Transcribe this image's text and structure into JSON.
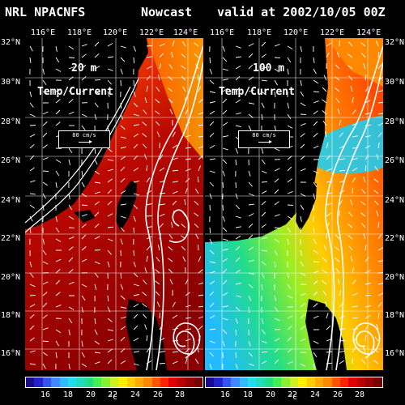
{
  "header": {
    "model": "NRL NPACNFS",
    "type": "Nowcast",
    "valid": "valid at 2002/10/05 00Z"
  },
  "lon_labels": [
    "116°E",
    "118°E",
    "120°E",
    "122°E",
    "124°E"
  ],
  "lat_labels": [
    "32°N",
    "30°N",
    "28°N",
    "26°N",
    "24°N",
    "22°N",
    "20°N",
    "18°N",
    "16°N"
  ],
  "panels": [
    {
      "depth": "20 m",
      "field": "Temp/Current",
      "ref_vector": "80 cm/s"
    },
    {
      "depth": "100 m",
      "field": "Temp/Current",
      "ref_vector": "80 cm/s"
    }
  ],
  "colorbar": {
    "tick_labels": [
      "16",
      "18",
      "20",
      "22",
      "24",
      "26",
      "28"
    ],
    "unit": "°C",
    "colors": [
      "#1a0a8c",
      "#2222cc",
      "#3355ee",
      "#3f88ff",
      "#33bbff",
      "#22ddee",
      "#22ddbb",
      "#22dd88",
      "#44ee55",
      "#88f033",
      "#ccf022",
      "#ffee00",
      "#ffcc00",
      "#ffaa00",
      "#ff8800",
      "#ff5500",
      "#ff2200",
      "#e00000",
      "#bb0000",
      "#990000",
      "#770000"
    ]
  },
  "colors": {
    "land": "#000000",
    "grid": "#ffffff",
    "vector": "#ffffff"
  }
}
